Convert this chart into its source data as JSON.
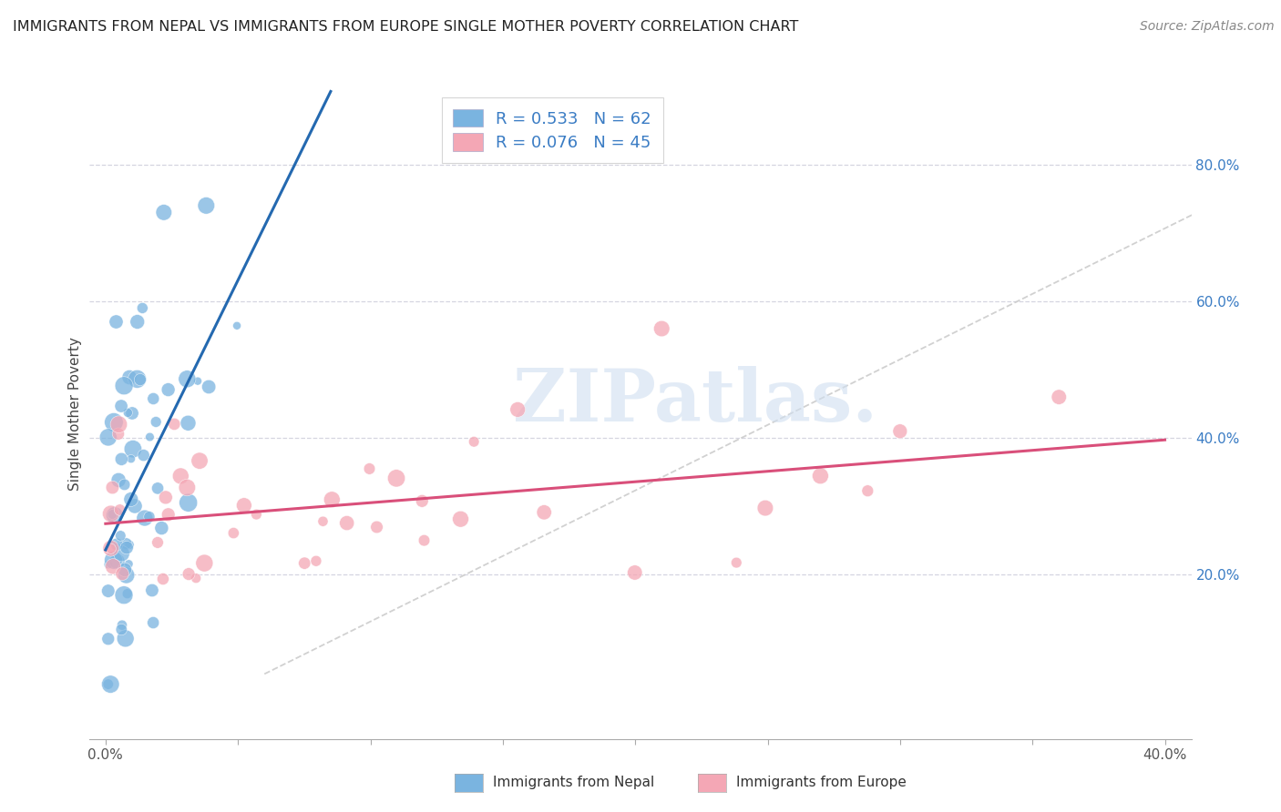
{
  "title": "IMMIGRANTS FROM NEPAL VS IMMIGRANTS FROM EUROPE SINGLE MOTHER POVERTY CORRELATION CHART",
  "source": "Source: ZipAtlas.com",
  "ylabel": "Single Mother Poverty",
  "legend_label1": "Immigrants from Nepal",
  "legend_label2": "Immigrants from Europe",
  "R1": "0.533",
  "N1": "62",
  "R2": "0.076",
  "N2": "45",
  "color_nepal": "#7ab4e0",
  "color_europe": "#f4a7b5",
  "color_nepal_line": "#2469b0",
  "color_europe_line": "#d94f7a",
  "color_diagonal": "#cccccc",
  "background_color": "#ffffff",
  "grid_color": "#d5d5e0",
  "watermark_text": "ZIPatlas.",
  "right_ytick_color": "#3a7cc4",
  "bottom_xtick_color": "#555555"
}
